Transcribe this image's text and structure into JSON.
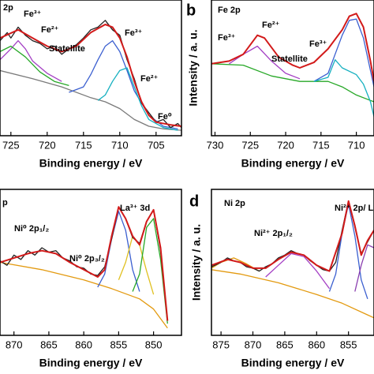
{
  "chart_data": [
    {
      "type": "line",
      "title": "2p",
      "xlabel": "Binding energy / eV",
      "xlim": [
        726.5,
        701.5
      ],
      "xticks": [
        725,
        720,
        715,
        710,
        705
      ],
      "ylim": [
        0,
        100
      ],
      "annotations": [
        "Fe³⁺",
        "Fe²⁺",
        "Statellite",
        "Fe³⁺",
        "Fe²⁺",
        "Fe⁰"
      ],
      "series": [
        {
          "color": "#7a7a7a",
          "x": [
            726.5,
            722,
            718,
            714,
            712,
            710,
            708,
            706,
            704,
            701.5
          ],
          "values": [
            48,
            42,
            36,
            28,
            25,
            20,
            12,
            7,
            5,
            4
          ]
        },
        {
          "color": "#a43fc4",
          "x": [
            726.5,
            725,
            724,
            723,
            722,
            720,
            718
          ],
          "values": [
            56,
            64,
            70,
            64,
            55,
            46,
            40
          ]
        },
        {
          "color": "#27a827",
          "x": [
            726.5,
            725,
            723,
            721,
            719,
            717
          ],
          "values": [
            62,
            66,
            58,
            47,
            40,
            37
          ]
        },
        {
          "color": "#3b5fd0",
          "x": [
            717,
            715,
            714,
            713,
            712,
            711,
            710,
            709,
            708,
            706,
            704,
            702
          ],
          "values": [
            32,
            36,
            45,
            56,
            66,
            70,
            62,
            48,
            33,
            15,
            7,
            5
          ]
        },
        {
          "color": "#16b0c0",
          "x": [
            713,
            712,
            711,
            710,
            709,
            708,
            707,
            706,
            704,
            702
          ],
          "values": [
            26,
            30,
            40,
            48,
            50,
            36,
            22,
            12,
            6,
            4
          ]
        },
        {
          "color": "#222222",
          "x": [
            726.5,
            725.5,
            725,
            724,
            723,
            722,
            721,
            720,
            719,
            718,
            717,
            716,
            715,
            714,
            713,
            712,
            711,
            710,
            709,
            708,
            707,
            706,
            705,
            704,
            703,
            702,
            701.5
          ],
          "values": [
            70,
            76,
            72,
            80,
            74,
            70,
            68,
            64,
            66,
            60,
            64,
            67,
            72,
            78,
            80,
            85,
            78,
            74,
            56,
            42,
            24,
            17,
            10,
            12,
            6,
            9,
            6
          ]
        },
        {
          "color": "#d21a1a",
          "x": [
            726.5,
            724,
            722,
            720,
            718,
            716,
            714,
            712,
            711,
            710,
            709,
            708,
            707,
            706,
            705,
            703,
            701.5
          ],
          "values": [
            72,
            78,
            72,
            66,
            62,
            66,
            76,
            82,
            80,
            72,
            58,
            40,
            25,
            15,
            10,
            8,
            7
          ]
        }
      ]
    },
    {
      "type": "line",
      "letter": "b",
      "title": "Fe 2p",
      "xlabel": "Binding energy / eV",
      "ylabel": "Intensity / a. u.",
      "xlim": [
        730.5,
        707.5
      ],
      "xticks": [
        730,
        725,
        720,
        715,
        710
      ],
      "ylim": [
        0,
        100
      ],
      "annotations": [
        "Fe³⁺",
        "Fe²⁺",
        "Statellite",
        "Fe³⁺"
      ],
      "series": [
        {
          "color": "#27a827",
          "x": [
            730.5,
            726,
            722,
            718,
            716,
            714,
            712,
            710,
            708,
            707.5
          ],
          "values": [
            53,
            52,
            44,
            40,
            40,
            40,
            36,
            30,
            26,
            25
          ]
        },
        {
          "color": "#a43fc4",
          "x": [
            728,
            726,
            724,
            722,
            720,
            718
          ],
          "values": [
            53,
            60,
            66,
            55,
            46,
            42
          ]
        },
        {
          "color": "#3b5fd0",
          "x": [
            716,
            714,
            713,
            712,
            711,
            710,
            709,
            708,
            707.5
          ],
          "values": [
            40,
            46,
            60,
            74,
            85,
            86,
            72,
            48,
            36
          ]
        },
        {
          "color": "#16b0c0",
          "x": [
            716,
            714,
            713,
            712,
            710,
            709,
            708,
            707.5
          ],
          "values": [
            40,
            43,
            56,
            50,
            45,
            38,
            25,
            14
          ]
        },
        {
          "color": "#d21a1a",
          "x": [
            730.5,
            728,
            726,
            724,
            723,
            721,
            719,
            718,
            716,
            714,
            712,
            711,
            710,
            709,
            708,
            707.5
          ],
          "values": [
            53,
            55,
            60,
            74,
            72,
            58,
            52,
            50,
            54,
            64,
            78,
            88,
            90,
            80,
            55,
            40
          ]
        }
      ]
    },
    {
      "type": "line",
      "title": "p",
      "xlabel": "Binding energy / eV",
      "xlim": [
        872,
        846
      ],
      "xticks": [
        870,
        865,
        860,
        855,
        850
      ],
      "ylim": [
        0,
        100
      ],
      "annotations": [
        "La³⁺ 3d",
        "Ni⁰ 2p₁/₂",
        "Ni⁰ 2p₃/₂"
      ],
      "series": [
        {
          "color": "#e39a10",
          "x": [
            872,
            866,
            860,
            856,
            852,
            850,
            848
          ],
          "values": [
            50,
            45,
            38,
            32,
            25,
            18,
            5
          ]
        },
        {
          "color": "#3b5fd0",
          "x": [
            858,
            857,
            856,
            855,
            854,
            853,
            852
          ],
          "values": [
            33,
            42,
            66,
            85,
            72,
            45,
            30
          ]
        },
        {
          "color": "#e0c020",
          "x": [
            855,
            854,
            853,
            852,
            851,
            850
          ],
          "values": [
            38,
            50,
            68,
            62,
            44,
            28
          ]
        },
        {
          "color": "#27a827",
          "x": [
            853,
            852,
            851,
            850,
            849,
            848
          ],
          "values": [
            30,
            42,
            74,
            80,
            52,
            8
          ]
        },
        {
          "color": "#222222",
          "x": [
            872,
            871,
            870,
            869,
            868,
            867,
            866,
            865,
            864,
            863,
            862,
            861,
            860,
            859,
            858,
            857,
            856,
            855,
            854,
            853,
            852,
            851,
            850,
            849,
            848
          ],
          "values": [
            51,
            48,
            55,
            52,
            58,
            55,
            60,
            57,
            58,
            53,
            51,
            47,
            46,
            42,
            41,
            47,
            66,
            88,
            80,
            67,
            63,
            78,
            86,
            58,
            10
          ]
        },
        {
          "color": "#d21a1a",
          "x": [
            872,
            868,
            866,
            864,
            862,
            860,
            858,
            857,
            856,
            855,
            854,
            853,
            852,
            851,
            850,
            849,
            848
          ],
          "values": [
            50,
            56,
            58,
            56,
            50,
            45,
            40,
            45,
            68,
            88,
            80,
            68,
            62,
            78,
            86,
            60,
            10
          ]
        }
      ]
    },
    {
      "type": "line",
      "letter": "d",
      "title": "Ni 2p",
      "xlabel": "Binding energy / eV",
      "ylabel": "Intensity / a. u.",
      "xlim": [
        876.5,
        851
      ],
      "xticks": [
        875,
        870,
        865,
        860,
        855
      ],
      "ylim": [
        0,
        100
      ],
      "annotations": [
        "Ni²⁺ 2p₁/₂",
        "Ni²⁺ 2p/ L"
      ],
      "series": [
        {
          "color": "#e39a10",
          "x": [
            876.5,
            872,
            866,
            860,
            856,
            852,
            851
          ],
          "values": [
            45,
            42,
            36,
            28,
            22,
            14,
            12
          ]
        },
        {
          "color": "#e39a10",
          "x": [
            876.5,
            875,
            873,
            871,
            869
          ],
          "values": [
            46,
            50,
            53,
            49,
            44
          ]
        },
        {
          "color": "#a43fc4",
          "x": [
            868,
            866,
            864,
            862,
            860,
            858
          ],
          "values": [
            40,
            48,
            56,
            54,
            44,
            32
          ]
        },
        {
          "color": "#3b5fd0",
          "x": [
            858,
            857,
            856,
            855,
            854,
            853,
            852
          ],
          "values": [
            30,
            42,
            70,
            90,
            68,
            38,
            25
          ]
        },
        {
          "color": "#8b3fb0",
          "x": [
            854,
            853,
            852,
            851
          ],
          "values": [
            30,
            48,
            62,
            60
          ]
        },
        {
          "color": "#222222",
          "x": [
            876.5,
            875,
            874,
            873,
            872,
            871,
            870,
            869,
            868,
            867,
            866,
            865,
            864,
            863,
            862,
            861,
            860,
            859,
            858,
            857,
            856,
            855,
            854,
            853,
            852,
            851
          ],
          "values": [
            47,
            50,
            53,
            51,
            50,
            47,
            46,
            44,
            47,
            49,
            53,
            55,
            58,
            56,
            55,
            51,
            48,
            45,
            44,
            50,
            72,
            92,
            74,
            56,
            64,
            72
          ]
        },
        {
          "color": "#d21a1a",
          "x": [
            876.5,
            874,
            872,
            870,
            868,
            866,
            864,
            862,
            860,
            858,
            856,
            855,
            854,
            853,
            852,
            851
          ],
          "values": [
            48,
            52,
            50,
            46,
            46,
            52,
            57,
            55,
            48,
            44,
            70,
            92,
            75,
            55,
            65,
            72
          ]
        }
      ]
    }
  ]
}
